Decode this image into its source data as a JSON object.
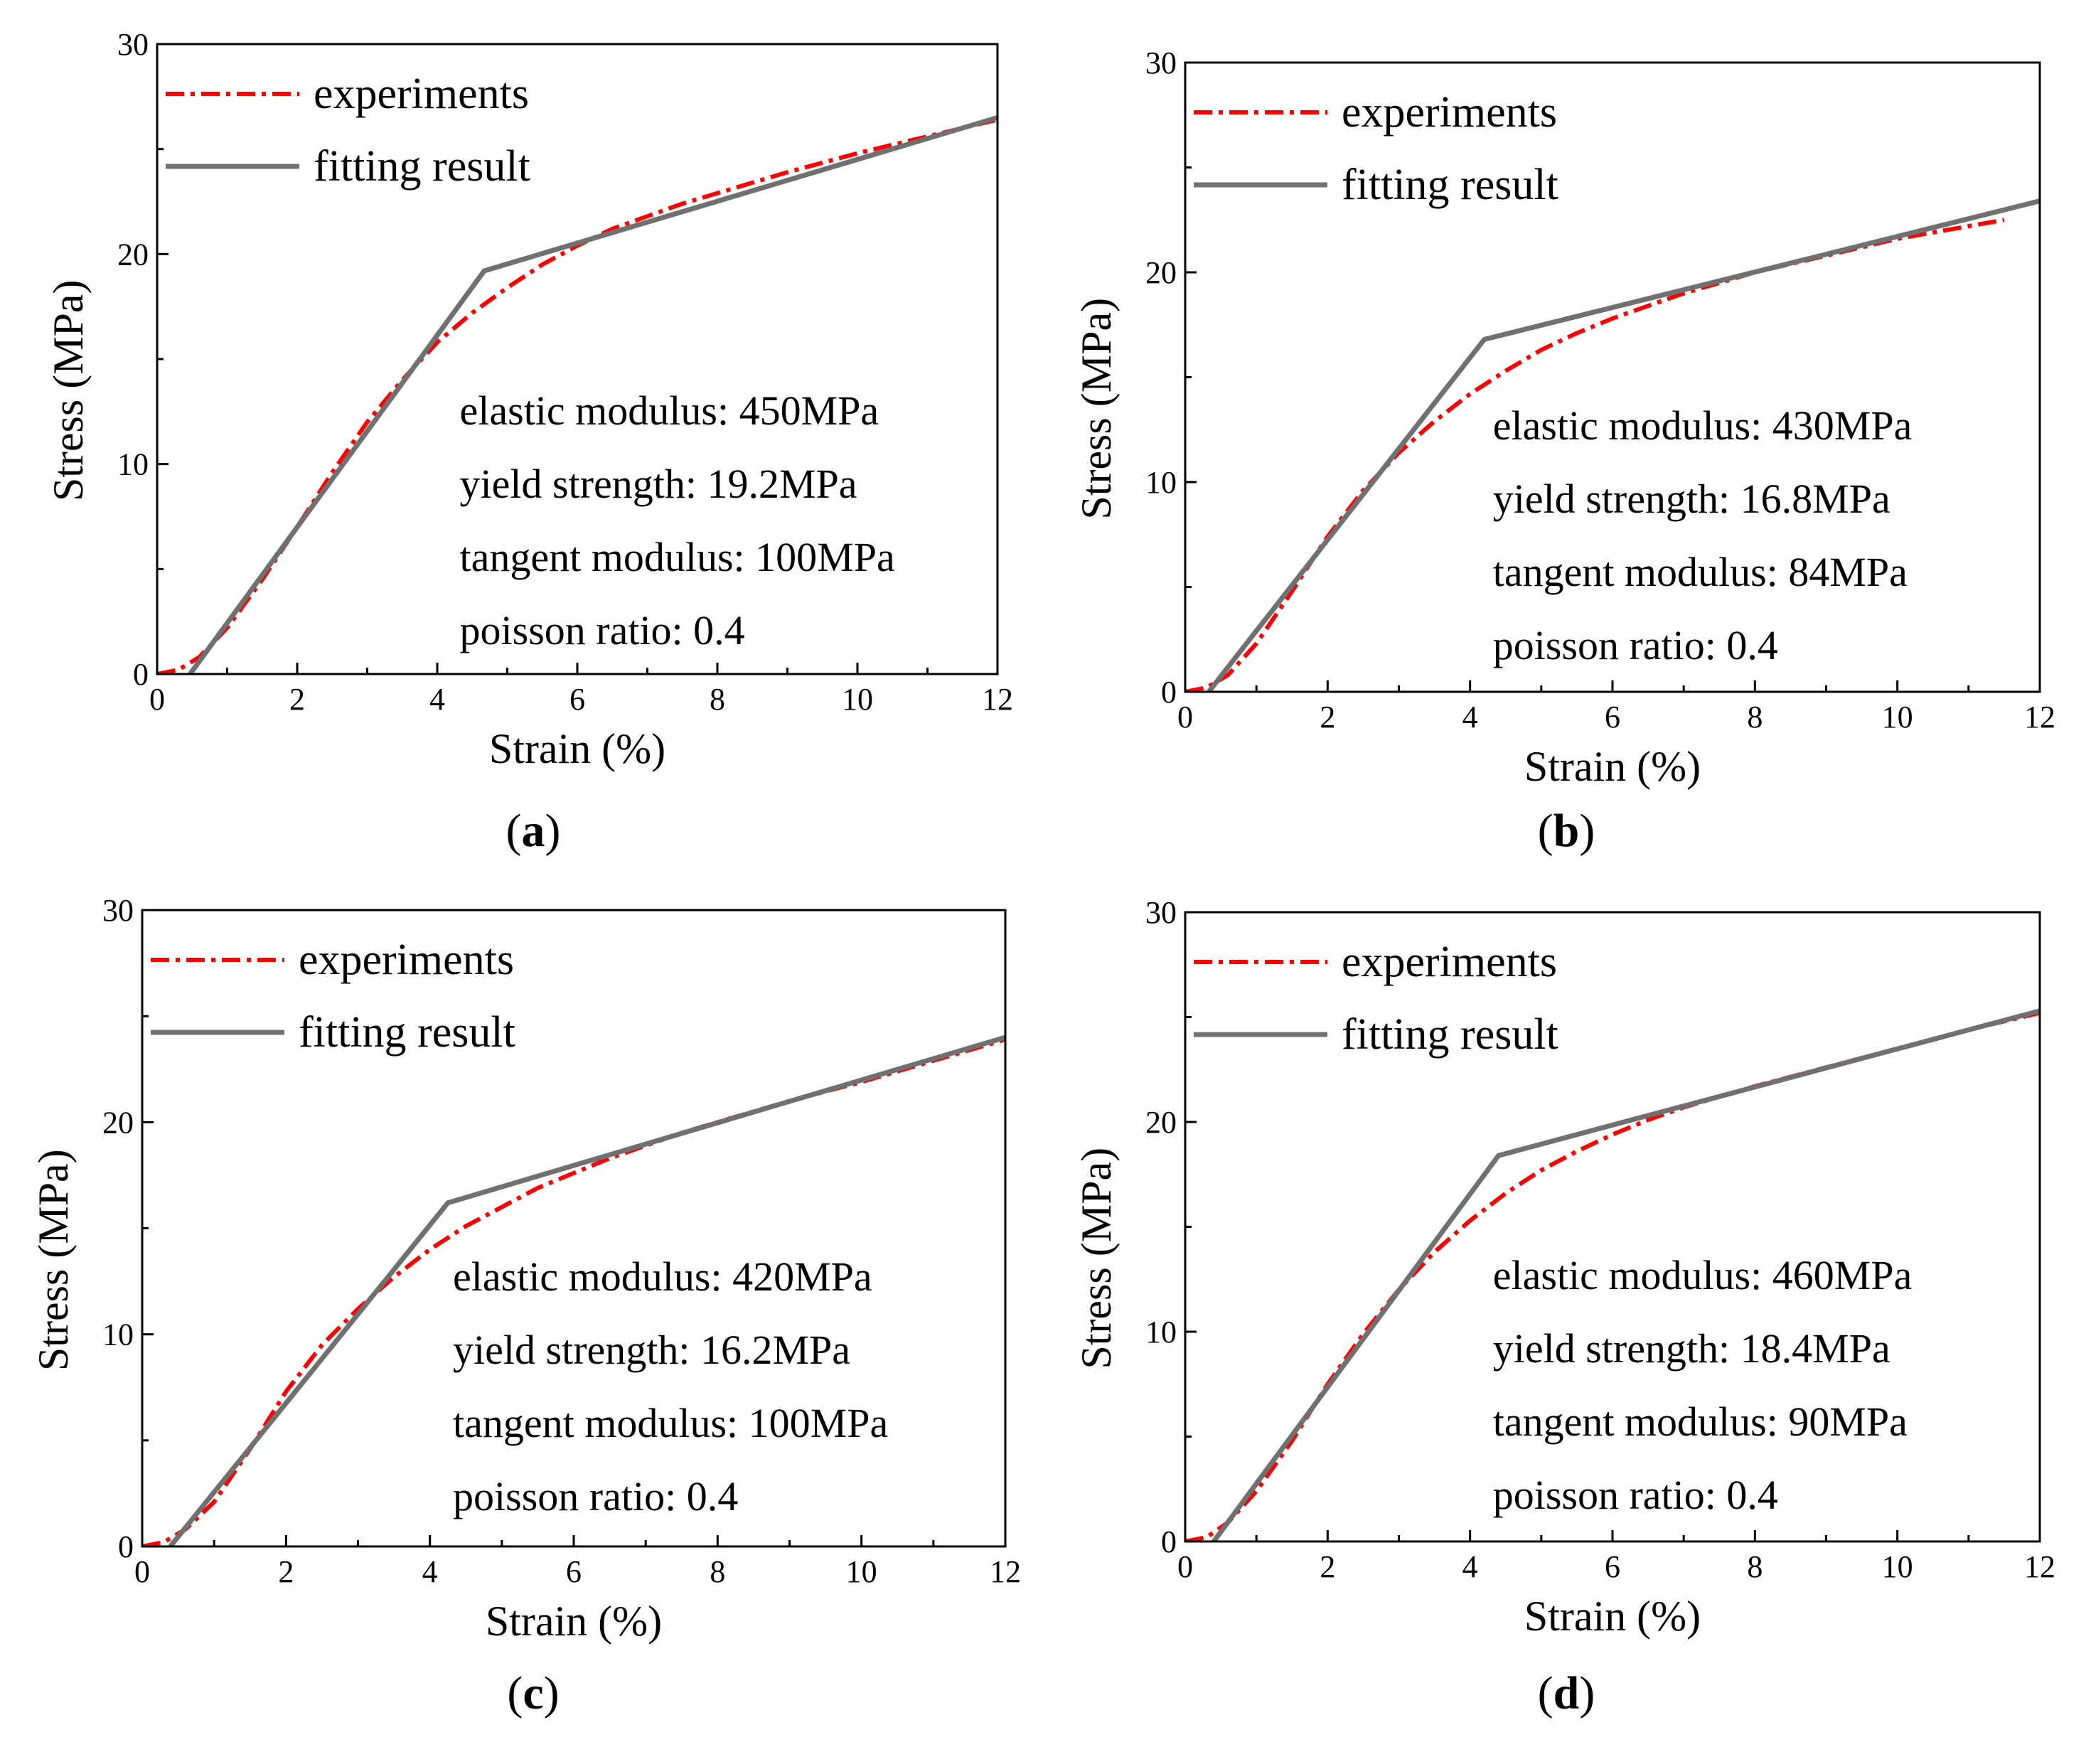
{
  "figure": {
    "background": "#ffffff"
  },
  "chart_data": [
    {
      "type": "line",
      "panel_label": "a",
      "xlabel": "Strain (%)",
      "ylabel": "Stress (MPa)",
      "xlim": [
        0,
        12
      ],
      "ylim": [
        0,
        30
      ],
      "xticks": [
        0,
        2,
        4,
        6,
        8,
        10,
        12
      ],
      "yticks": [
        0,
        10,
        20,
        30
      ],
      "legend_position": "top-left",
      "annotations": [
        "elastic modulus: 450MPa",
        "yield strength: 19.2MPa",
        "tangent modulus: 100MPa",
        "poisson ratio: 0.4"
      ],
      "series": [
        {
          "name": "experiments",
          "style": "dash-dot",
          "color": "#ff0000",
          "x": [
            0,
            0.3,
            0.6,
            1.0,
            1.5,
            2.0,
            2.5,
            3.0,
            3.5,
            4.0,
            4.5,
            5.0,
            5.5,
            6.0,
            6.5,
            7.0,
            7.5,
            8.0,
            9.0,
            10.0,
            11.0,
            12.0
          ],
          "y": [
            0,
            0.2,
            0.8,
            2.2,
            4.5,
            7.0,
            9.6,
            12.0,
            14.0,
            15.8,
            17.2,
            18.4,
            19.5,
            20.4,
            21.2,
            21.8,
            22.4,
            22.9,
            23.9,
            24.8,
            25.6,
            26.4
          ]
        },
        {
          "name": "fitting result",
          "style": "solid",
          "color": "#707070",
          "x": [
            0.47,
            4.67,
            12.0
          ],
          "y": [
            0,
            19.2,
            26.5
          ]
        }
      ]
    },
    {
      "type": "line",
      "panel_label": "b",
      "xlabel": "Strain (%)",
      "ylabel": "Stress (MPa)",
      "xlim": [
        0,
        12
      ],
      "ylim": [
        0,
        30
      ],
      "xticks": [
        0,
        2,
        4,
        6,
        8,
        10,
        12
      ],
      "yticks": [
        0,
        10,
        20,
        30
      ],
      "legend_position": "top-left",
      "annotations": [
        "elastic modulus: 430MPa",
        "yield strength: 16.8MPa",
        "tangent modulus: 84MPa",
        "poisson ratio: 0.4"
      ],
      "series": [
        {
          "name": "experiments",
          "style": "dash-dot",
          "color": "#ff0000",
          "x": [
            0,
            0.3,
            0.6,
            1.0,
            1.5,
            2.0,
            2.5,
            3.0,
            3.5,
            4.0,
            4.5,
            5.0,
            5.5,
            6.0,
            6.5,
            7.0,
            7.5,
            8.0,
            9.0,
            10.0,
            11.0,
            11.5
          ],
          "y": [
            0,
            0.2,
            0.8,
            2.3,
            4.8,
            7.4,
            9.6,
            11.4,
            12.9,
            14.2,
            15.3,
            16.3,
            17.1,
            17.8,
            18.4,
            19.0,
            19.5,
            20.0,
            20.8,
            21.6,
            22.2,
            22.5
          ]
        },
        {
          "name": "fitting result",
          "style": "solid",
          "color": "#707070",
          "x": [
            0.33,
            4.2,
            12.0
          ],
          "y": [
            0,
            16.8,
            23.4
          ]
        }
      ]
    },
    {
      "type": "line",
      "panel_label": "c",
      "xlabel": "Strain (%)",
      "ylabel": "Stress (MPa)",
      "xlim": [
        0,
        12
      ],
      "ylim": [
        0,
        30
      ],
      "xticks": [
        0,
        2,
        4,
        6,
        8,
        10,
        12
      ],
      "yticks": [
        0,
        10,
        20,
        30
      ],
      "legend_position": "top-left",
      "annotations": [
        "elastic modulus: 420MPa",
        "yield strength: 16.2MPa",
        "tangent modulus: 100MPa",
        "poisson ratio: 0.4"
      ],
      "series": [
        {
          "name": "experiments",
          "style": "dash-dot",
          "color": "#ff0000",
          "x": [
            0,
            0.3,
            0.6,
            1.0,
            1.5,
            2.0,
            2.5,
            3.0,
            3.5,
            4.0,
            4.5,
            5.0,
            5.5,
            6.0,
            6.5,
            7.0,
            7.5,
            8.0,
            9.0,
            10.0,
            11.0,
            12.0
          ],
          "y": [
            0,
            0.2,
            0.8,
            2.1,
            4.6,
            7.3,
            9.5,
            11.2,
            12.7,
            14.0,
            15.1,
            16.0,
            16.9,
            17.6,
            18.3,
            18.9,
            19.5,
            20.0,
            21.0,
            21.9,
            22.9,
            23.9
          ]
        },
        {
          "name": "fitting result",
          "style": "solid",
          "color": "#707070",
          "x": [
            0.39,
            4.25,
            12.0
          ],
          "y": [
            0,
            16.2,
            24.0
          ]
        }
      ]
    },
    {
      "type": "line",
      "panel_label": "d",
      "xlabel": "Strain (%)",
      "ylabel": "Stress (MPa)",
      "xlim": [
        0,
        12
      ],
      "ylim": [
        0,
        30
      ],
      "xticks": [
        0,
        2,
        4,
        6,
        8,
        10,
        12
      ],
      "yticks": [
        0,
        10,
        20,
        30
      ],
      "legend_position": "top-left",
      "annotations": [
        "elastic modulus: 460MPa",
        "yield strength: 18.4MPa",
        "tangent modulus: 90MPa",
        "poisson ratio: 0.4"
      ],
      "series": [
        {
          "name": "experiments",
          "style": "dash-dot",
          "color": "#ff0000",
          "x": [
            0,
            0.3,
            0.6,
            1.0,
            1.5,
            2.0,
            2.5,
            3.0,
            3.5,
            4.0,
            4.5,
            5.0,
            5.5,
            6.0,
            6.5,
            7.0,
            7.5,
            8.0,
            9.0,
            10.0,
            11.0,
            12.0
          ],
          "y": [
            0,
            0.2,
            0.9,
            2.4,
            4.8,
            7.5,
            9.9,
            12.0,
            13.8,
            15.3,
            16.6,
            17.7,
            18.6,
            19.4,
            20.1,
            20.7,
            21.2,
            21.7,
            22.6,
            23.5,
            24.4,
            25.2
          ]
        },
        {
          "name": "fitting result",
          "style": "solid",
          "color": "#707070",
          "x": [
            0.4,
            4.4,
            12.0
          ],
          "y": [
            0,
            18.4,
            25.3
          ]
        }
      ]
    }
  ]
}
